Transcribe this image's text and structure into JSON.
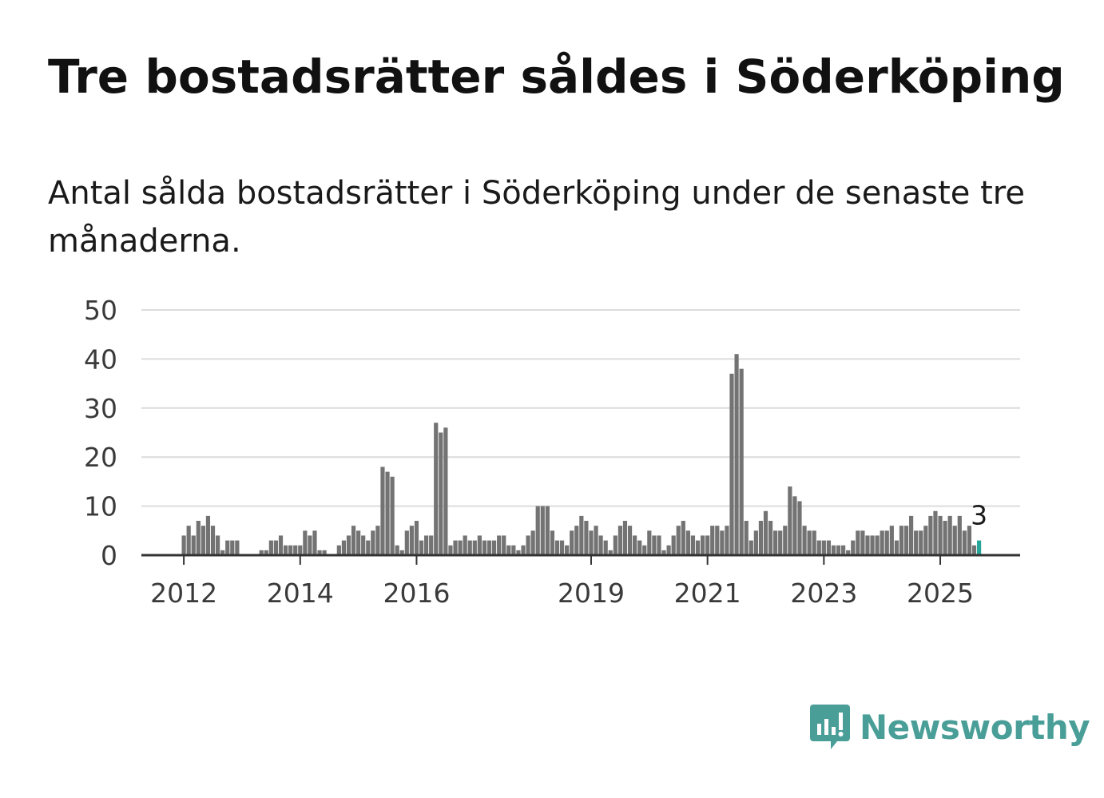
{
  "title": "Tre bostadsrätter såldes i Söderköping",
  "subtitle": "Antal sålda bostadsrätter i Söderköping under de senaste tre månaderna.",
  "brand": {
    "name": "Newsworthy",
    "icon": "bar-chart-speech-bubble-icon",
    "color": "#4a9e98"
  },
  "chart_data": {
    "type": "bar",
    "title": "",
    "xlabel": "",
    "ylabel": "",
    "ylim": [
      0,
      50
    ],
    "yticks": [
      0,
      10,
      20,
      30,
      40,
      50
    ],
    "grid": true,
    "x_start": "2011-01",
    "x_end": "2025-07",
    "x_tick_labels": [
      {
        "label": "2012",
        "date": "2012-01"
      },
      {
        "label": "2014",
        "date": "2014-01"
      },
      {
        "label": "2016",
        "date": "2016-01"
      },
      {
        "label": "2019",
        "date": "2019-01"
      },
      {
        "label": "2021",
        "date": "2021-01"
      },
      {
        "label": "2023",
        "date": "2023-01"
      },
      {
        "label": "2025",
        "date": "2025-01"
      }
    ],
    "bar_color": "#737373",
    "highlight_color": "#26a69a",
    "series": [
      {
        "values": [
          0,
          0,
          0,
          0,
          0,
          0,
          0,
          0,
          0,
          0,
          0,
          0,
          4,
          6,
          4,
          7,
          6,
          8,
          6,
          4,
          1,
          3,
          3,
          3,
          0,
          0,
          0,
          0,
          1,
          1,
          3,
          3,
          4,
          2,
          2,
          2,
          2,
          5,
          4,
          5,
          1,
          1,
          0,
          0,
          2,
          3,
          4,
          6,
          5,
          4,
          3,
          5,
          6,
          18,
          17,
          16,
          2,
          1,
          5,
          6,
          7,
          3,
          4,
          4,
          27,
          25,
          26,
          2,
          3,
          3,
          4,
          3,
          3,
          4,
          3,
          3,
          3,
          4,
          4,
          2,
          2,
          1,
          2,
          4,
          5,
          10,
          10,
          10,
          5,
          3,
          3,
          2,
          5,
          6,
          8,
          7,
          5,
          6,
          4,
          3,
          1,
          4,
          6,
          7,
          6,
          4,
          3,
          2,
          5,
          4,
          4,
          1,
          2,
          4,
          6,
          7,
          5,
          4,
          3,
          4,
          4,
          6,
          6,
          5,
          6,
          37,
          41,
          38,
          7,
          3,
          5,
          7,
          9,
          7,
          5,
          5,
          6,
          14,
          12,
          11,
          6,
          5,
          5,
          3,
          3,
          3,
          2,
          2,
          2,
          1,
          3,
          5,
          5,
          4,
          4,
          4,
          5,
          5,
          6,
          3,
          6,
          6,
          8,
          5,
          5,
          6,
          8,
          9,
          8,
          7,
          8,
          6,
          8,
          5,
          6,
          2,
          3
        ]
      }
    ],
    "highlight": {
      "date": "2025-07",
      "value": 3,
      "label": "3"
    }
  }
}
